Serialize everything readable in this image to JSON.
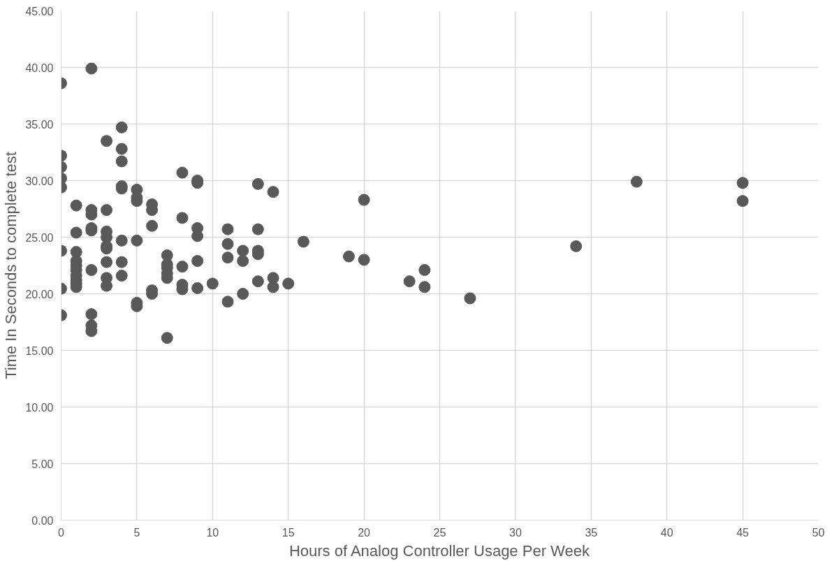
{
  "chart_data": {
    "type": "scatter",
    "xlabel": "Hours of Analog Controller Usage Per Week",
    "ylabel": "Time In Seconds to complete test",
    "x": [
      0,
      0,
      0,
      0,
      0,
      0,
      0,
      0,
      1,
      1,
      1,
      1,
      1,
      1,
      1,
      1,
      1,
      1,
      2,
      2,
      2,
      2,
      2,
      2,
      2,
      2,
      2,
      3,
      3,
      3,
      3,
      3,
      3,
      3,
      3,
      3,
      4,
      4,
      4,
      4,
      4,
      4,
      4,
      4,
      5,
      5,
      5,
      5,
      5,
      5,
      6,
      6,
      6,
      6,
      6,
      7,
      7,
      7,
      7,
      7,
      7,
      8,
      8,
      8,
      8,
      8,
      9,
      9,
      9,
      9,
      9,
      9,
      10,
      11,
      11,
      11,
      11,
      12,
      12,
      12,
      13,
      13,
      13,
      13,
      13,
      14,
      14,
      14,
      15,
      16,
      19,
      20,
      20,
      23,
      24,
      24,
      27,
      34,
      38,
      45,
      45
    ],
    "series": [
      {
        "color": "#595959",
        "values": [
          38.6,
          32.2,
          31.2,
          30.2,
          29.4,
          23.8,
          20.45,
          18.1,
          27.8,
          25.4,
          23.7,
          22.9,
          22.5,
          22.1,
          21.6,
          21.2,
          20.9,
          20.6,
          39.9,
          27.4,
          27.0,
          25.8,
          25.6,
          22.1,
          18.2,
          17.2,
          16.7,
          33.5,
          27.4,
          25.5,
          25.0,
          24.2,
          24.0,
          22.8,
          21.4,
          20.7,
          34.7,
          32.8,
          31.7,
          29.5,
          29.3,
          24.7,
          22.8,
          21.6,
          29.2,
          28.5,
          28.2,
          24.7,
          19.2,
          18.9,
          27.9,
          27.4,
          26.0,
          20.3,
          20.0,
          23.4,
          22.6,
          22.3,
          21.8,
          21.4,
          16.1,
          30.7,
          26.7,
          22.4,
          20.8,
          20.4,
          30.0,
          29.8,
          25.8,
          25.1,
          22.9,
          20.5,
          20.9,
          25.7,
          24.4,
          23.2,
          19.3,
          23.8,
          22.9,
          20.0,
          29.7,
          25.7,
          23.8,
          23.5,
          21.1,
          29.0,
          21.4,
          20.6,
          20.9,
          24.6,
          23.3,
          28.3,
          23.0,
          21.1,
          22.1,
          20.6,
          19.6,
          24.2,
          29.9,
          29.8,
          28.2
        ]
      }
    ],
    "xlim": [
      0,
      50
    ],
    "xticks": [
      0,
      5,
      10,
      15,
      20,
      25,
      30,
      35,
      40,
      45,
      50
    ],
    "ylim": [
      0,
      45
    ],
    "yticks": [
      {
        "value": 0,
        "label": "0.00"
      },
      {
        "value": 5,
        "label": "5.00"
      },
      {
        "value": 10,
        "label": "10.00"
      },
      {
        "value": 15,
        "label": "15.00"
      },
      {
        "value": 20,
        "label": "20.00"
      },
      {
        "value": 25,
        "label": "25.00"
      },
      {
        "value": 30,
        "label": "30.00"
      },
      {
        "value": 35,
        "label": "35.00"
      },
      {
        "value": 40,
        "label": "40.00"
      },
      {
        "value": 45,
        "label": "45.00"
      }
    ],
    "grid": true,
    "marker": "circle"
  }
}
